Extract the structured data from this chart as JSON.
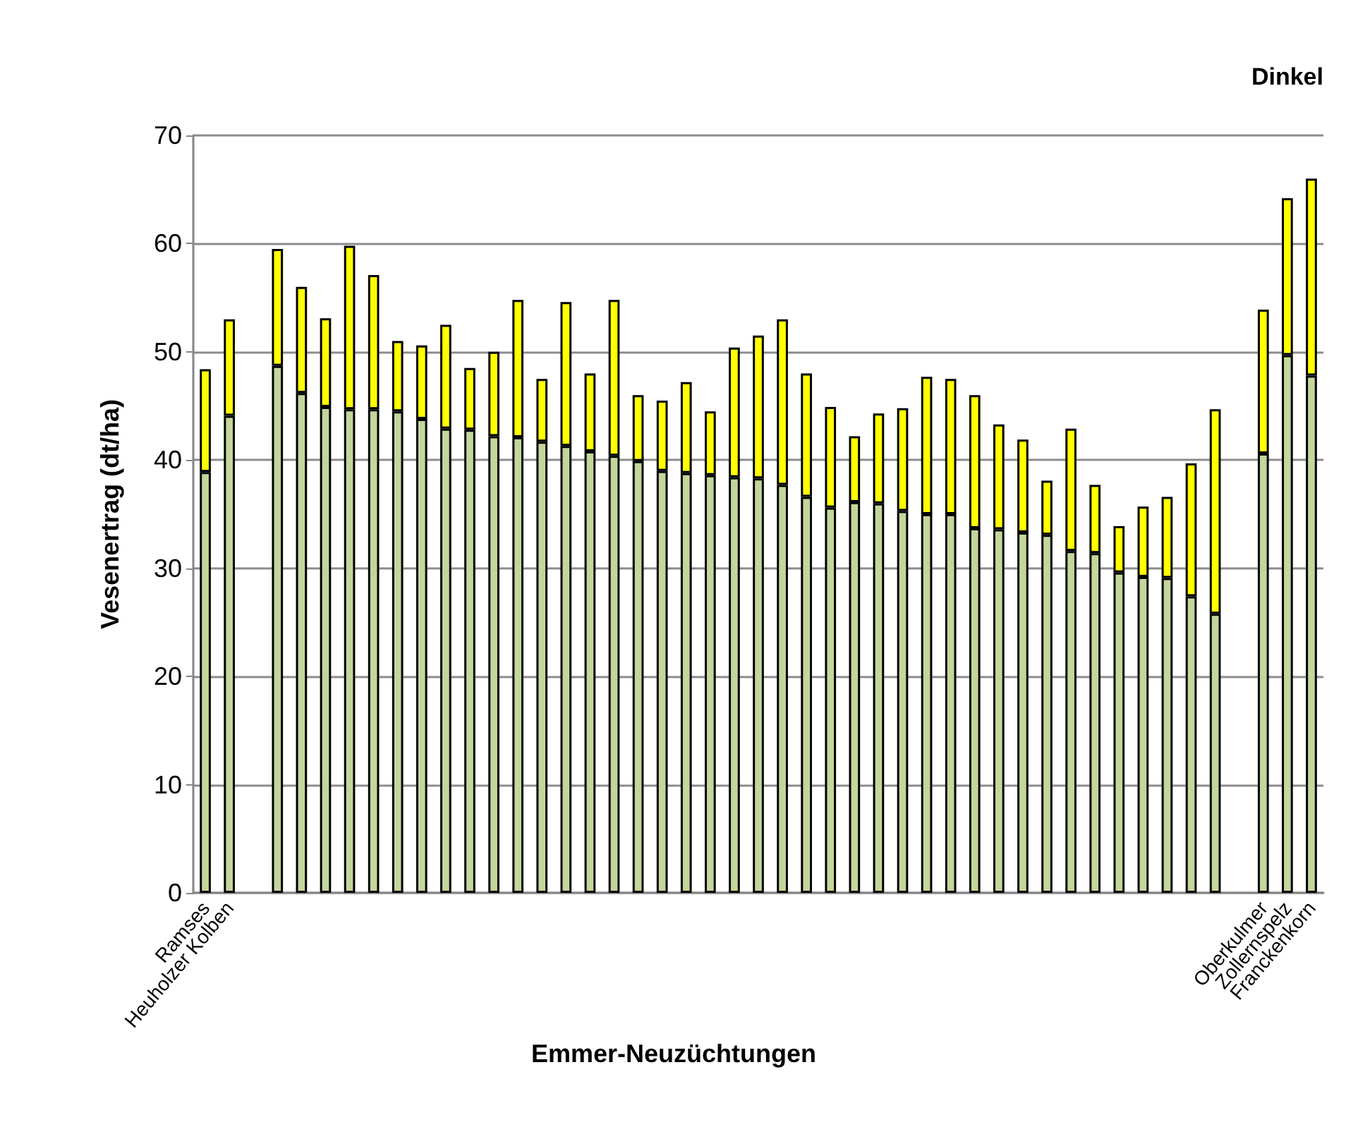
{
  "chart_data": {
    "type": "bar",
    "stacked": true,
    "ylabel": "Vesenertrag (dt/ha)",
    "xlabel": "Emmer-Neuzüchtungen",
    "annotations": [
      "Dinkel"
    ],
    "categories": [
      "Ramses",
      "Heuholzer Kolben",
      null,
      null,
      null,
      null,
      null,
      null,
      null,
      null,
      null,
      null,
      null,
      null,
      null,
      null,
      null,
      null,
      null,
      null,
      null,
      null,
      null,
      null,
      null,
      null,
      null,
      null,
      null,
      null,
      null,
      null,
      null,
      null,
      null,
      null,
      null,
      null,
      null,
      null,
      null,
      null,
      null,
      null,
      "Oberkulmer",
      "Zollernspelz",
      "Franckenkorn"
    ],
    "series": [
      {
        "color": "#c3d69b",
        "values": [
          38.9,
          44.1,
          null,
          48.7,
          46.2,
          44.9,
          44.7,
          44.7,
          44.5,
          43.8,
          42.9,
          42.8,
          42.2,
          42.1,
          41.7,
          41.3,
          40.8,
          40.4,
          39.9,
          39.0,
          38.8,
          38.6,
          38.4,
          38.3,
          37.7,
          36.6,
          35.6,
          36.1,
          36.0,
          35.3,
          35.0,
          35.0,
          33.7,
          33.6,
          33.3,
          33.1,
          31.6,
          31.4,
          29.6,
          29.2,
          29.1,
          27.4,
          25.8,
          null,
          40.6,
          49.7,
          47.8
        ]
      },
      {
        "color": "#ffff00",
        "values": [
          9.5,
          8.9,
          null,
          10.8,
          9.8,
          8.2,
          15.1,
          12.4,
          6.5,
          6.8,
          9.6,
          5.7,
          7.8,
          12.7,
          5.8,
          13.3,
          7.2,
          14.4,
          6.1,
          6.5,
          8.4,
          5.9,
          12.0,
          13.2,
          15.3,
          11.4,
          9.3,
          6.1,
          8.3,
          9.5,
          12.7,
          12.5,
          12.3,
          9.7,
          8.6,
          5.0,
          11.3,
          6.3,
          4.3,
          6.5,
          7.5,
          12.3,
          18.9,
          null,
          13.3,
          14.5,
          18.2
        ]
      }
    ],
    "ylim": [
      0,
      70
    ],
    "yticks": [
      0,
      10,
      20,
      30,
      40,
      50,
      60,
      70
    ],
    "grid": "y"
  }
}
